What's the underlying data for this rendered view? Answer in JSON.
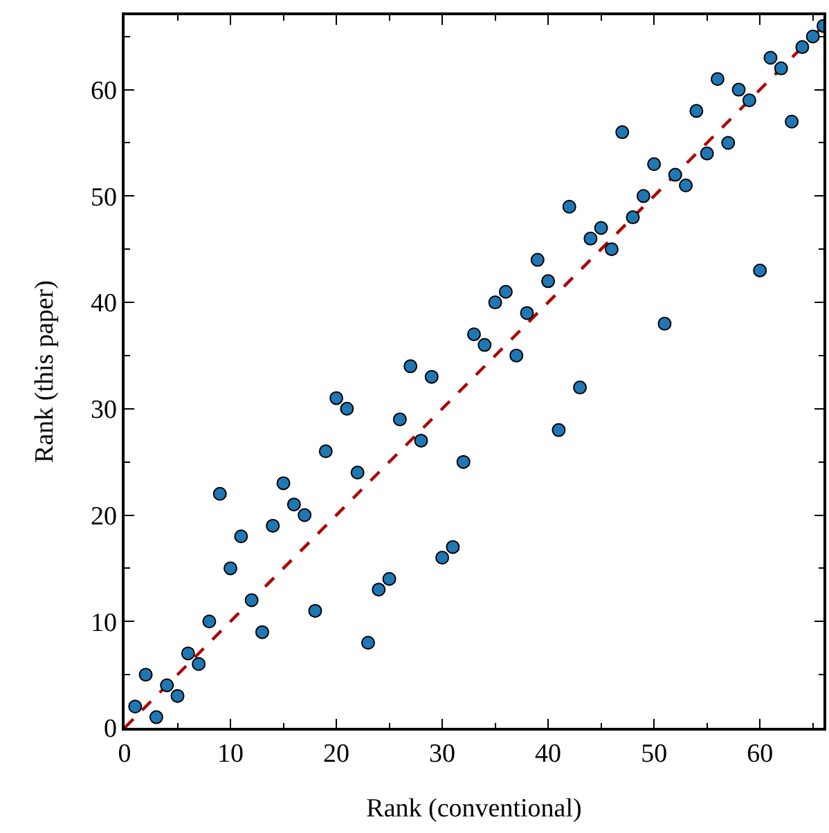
{
  "chart_data": {
    "type": "scatter",
    "xlabel": "Rank (conventional)",
    "ylabel": "Rank (this paper)",
    "xlim": [
      0,
      66
    ],
    "ylim": [
      0,
      67
    ],
    "xticks": [
      0,
      10,
      20,
      30,
      40,
      50,
      60
    ],
    "yticks": [
      0,
      10,
      20,
      30,
      40,
      50,
      60
    ],
    "marker": "circle",
    "series": [
      {
        "type": "line",
        "color": "#b00000",
        "line_style": "dashed",
        "marker": "none",
        "x": [
          0,
          66
        ],
        "values": [
          0,
          66
        ]
      },
      {
        "color": "#1f77b4",
        "x": [
          1,
          2,
          3,
          4,
          5,
          6,
          7,
          8,
          9,
          10,
          11,
          12,
          13,
          14,
          15,
          16,
          17,
          18,
          19,
          20,
          21,
          22,
          23,
          24,
          25,
          26,
          27,
          28,
          29,
          30,
          31,
          32,
          33,
          34,
          35,
          36,
          37,
          38,
          39,
          40,
          41,
          42,
          43,
          44,
          45,
          46,
          47,
          48,
          49,
          50,
          51,
          52,
          53,
          54,
          55,
          56,
          57,
          58,
          59,
          60,
          61,
          62,
          63,
          64,
          65,
          66
        ],
        "values": [
          2,
          5,
          1,
          4,
          3,
          7,
          6,
          10,
          22,
          15,
          18,
          12,
          9,
          19,
          23,
          21,
          20,
          11,
          26,
          31,
          30,
          24,
          8,
          13,
          14,
          29,
          34,
          27,
          33,
          16,
          17,
          25,
          37,
          36,
          40,
          41,
          35,
          39,
          44,
          42,
          28,
          49,
          32,
          46,
          47,
          45,
          56,
          48,
          50,
          53,
          38,
          52,
          51,
          58,
          54,
          61,
          55,
          60,
          59,
          43,
          63,
          62,
          57,
          64,
          65,
          66
        ]
      }
    ]
  }
}
